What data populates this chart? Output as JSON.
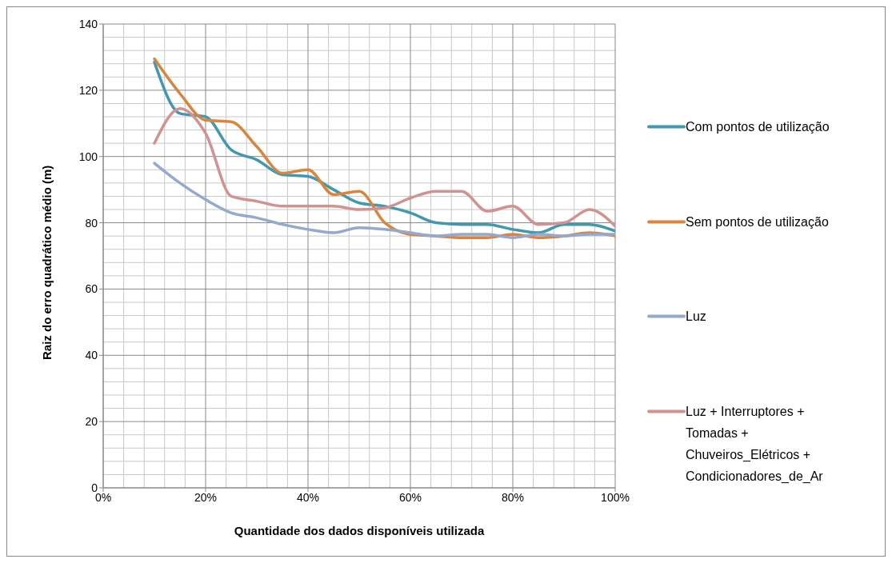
{
  "chart_data": {
    "type": "line",
    "xlabel": "Quantidade dos dados disponíveis utilizada",
    "ylabel": "Raiz do erro quadrático médio (m)",
    "x": [
      10,
      15,
      20,
      25,
      30,
      35,
      40,
      45,
      50,
      55,
      60,
      65,
      70,
      75,
      80,
      85,
      90,
      95,
      100
    ],
    "series": [
      {
        "name": "Com pontos de utilização",
        "color": "#4198af",
        "values": [
          128.5,
          113,
          112,
          102,
          99,
          94.5,
          94,
          90,
          86,
          85,
          83,
          80,
          79.5,
          79.5,
          78,
          77,
          79.5,
          79.5,
          77.5
        ]
      },
      {
        "name": "Sem pontos de utilização",
        "color": "#db843d",
        "values": [
          129.5,
          119,
          111,
          110.5,
          103,
          95,
          96,
          88.5,
          89.5,
          80,
          76.5,
          76,
          75.5,
          75.5,
          76.5,
          75.5,
          76,
          77,
          76
        ]
      },
      {
        "name": "Luz",
        "color": "#93a9cf",
        "values": [
          98,
          92,
          87,
          83,
          81.5,
          79.5,
          78,
          77,
          78.5,
          78,
          77,
          76,
          76.5,
          76.5,
          75.5,
          76.5,
          76,
          76.5,
          76.5
        ]
      },
      {
        "name": "Luz + Interruptores + Tomadas + Chuveiros_Elétricos + Condicionadores_de_Ar",
        "color": "#d19392",
        "values": [
          104,
          114.5,
          107,
          88,
          86.5,
          85,
          85,
          85,
          84,
          84.5,
          87.5,
          89.5,
          89.5,
          83.5,
          85,
          79.5,
          80,
          84,
          79
        ]
      }
    ],
    "xlim": [
      0,
      100
    ],
    "xticks": [
      {
        "value": 0,
        "label": "0%"
      },
      {
        "value": 20,
        "label": "20%"
      },
      {
        "value": 40,
        "label": "40%"
      },
      {
        "value": 60,
        "label": "60%"
      },
      {
        "value": 80,
        "label": "80%"
      },
      {
        "value": 100,
        "label": "100%"
      }
    ],
    "ylim": [
      0,
      140
    ],
    "yticks": [
      0,
      20,
      40,
      60,
      80,
      100,
      120,
      140
    ],
    "grid": true,
    "legend": "right",
    "marker": "none",
    "line_style": "solid"
  }
}
